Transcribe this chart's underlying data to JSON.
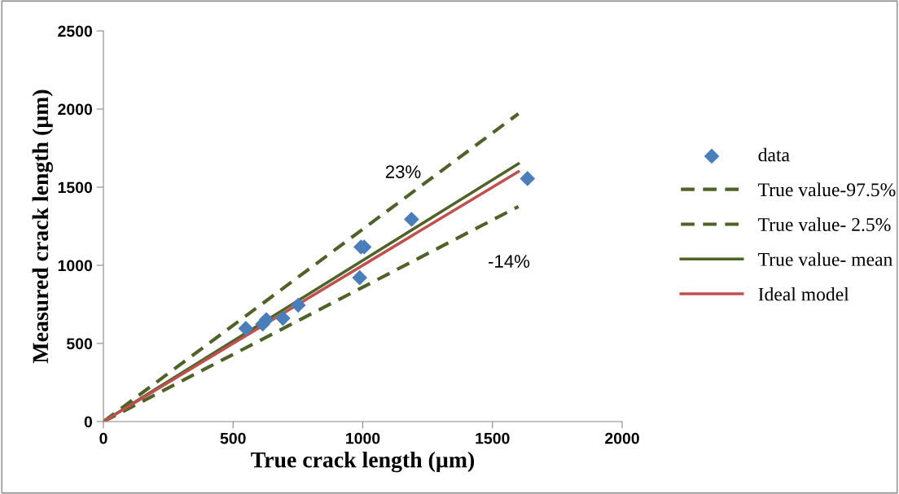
{
  "chart_data": {
    "type": "scatter",
    "xlabel": "True crack length (µm)",
    "ylabel": "Measured crack length (µm)",
    "xlim": [
      0,
      2000
    ],
    "xticks": [
      0,
      500,
      1000,
      1500,
      2000
    ],
    "ylim": [
      0,
      2500
    ],
    "yticks": [
      0,
      500,
      1000,
      1500,
      2000,
      2500
    ],
    "grid": false,
    "legend": "right",
    "series": [
      {
        "name": "data",
        "marker": "diamond",
        "color": "#4a7ebb",
        "x": [
          549,
          614,
          628,
          692,
          751,
          988,
          993,
          1005,
          1188,
          1635
        ],
        "values": [
          596,
          624,
          652,
          661,
          745,
          921,
          1117,
          1117,
          1294,
          1555
        ]
      },
      {
        "name": "True value-97.5%",
        "type": "line",
        "line_style": "dashed",
        "color": "#4f6228",
        "x": [
          0,
          1600
        ],
        "values": [
          0,
          1970
        ]
      },
      {
        "name": "True value- 2.5%",
        "type": "line",
        "line_style": "dashed",
        "color": "#4f6228",
        "x": [
          0,
          1600
        ],
        "values": [
          0,
          1376
        ]
      },
      {
        "name": "True value- mean",
        "type": "line",
        "line_style": "solid",
        "color": "#4f6228",
        "x": [
          0,
          1600
        ],
        "values": [
          0,
          1650
        ]
      },
      {
        "name": "Ideal model",
        "type": "line",
        "line_style": "solid",
        "color": "#c0504d",
        "x": [
          0,
          1600
        ],
        "values": [
          0,
          1600
        ]
      }
    ],
    "annotations": [
      "23%",
      "-14%"
    ]
  }
}
